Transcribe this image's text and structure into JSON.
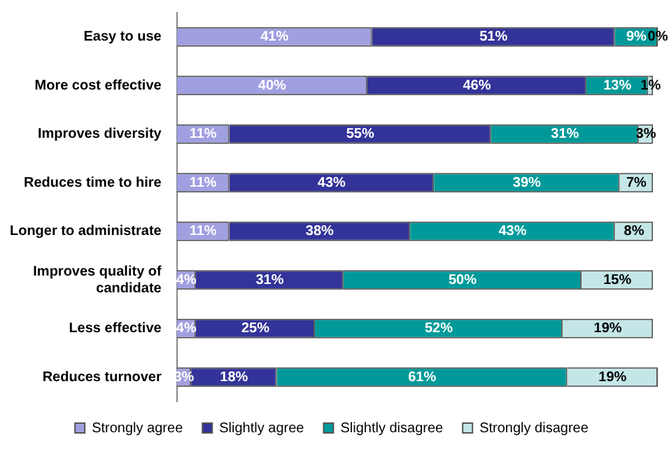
{
  "chart_data": {
    "type": "bar",
    "orientation": "horizontal",
    "stacked": true,
    "legend": "bottom",
    "categories": [
      "Easy to use",
      "More cost effective",
      "Improves diversity",
      "Reduces time to hire",
      "Longer to administrate",
      "Improves quality of candidate",
      "Less effective",
      "Reduces turnover"
    ],
    "series": [
      {
        "name": "Strongly agree",
        "color": "#a09fe0",
        "values": [
          41,
          40,
          11,
          11,
          11,
          4,
          4,
          3
        ],
        "value_labels": [
          "41%",
          "40%",
          "11%",
          "11%",
          "11%",
          "4%",
          "4%",
          "3%"
        ]
      },
      {
        "name": "Slightly agree",
        "color": "#333399",
        "values": [
          51,
          46,
          55,
          43,
          38,
          31,
          25,
          18
        ],
        "value_labels": [
          "51%",
          "46%",
          "55%",
          "43%",
          "38%",
          "31%",
          "25%",
          "18%"
        ]
      },
      {
        "name": "Slightly disagree",
        "color": "#009999",
        "values": [
          9,
          13,
          31,
          39,
          43,
          50,
          52,
          61
        ],
        "value_labels": [
          "9%",
          "13%",
          "31%",
          "39%",
          "43%",
          "50%",
          "52%",
          "61%"
        ]
      },
      {
        "name": "Strongly disagree",
        "color": "#c4e6e6",
        "values": [
          0,
          1,
          3,
          7,
          8,
          15,
          19,
          19
        ],
        "value_labels": [
          "0%",
          "1%",
          "3%",
          "7%",
          "8%",
          "15%",
          "19%",
          "19%"
        ]
      }
    ]
  }
}
